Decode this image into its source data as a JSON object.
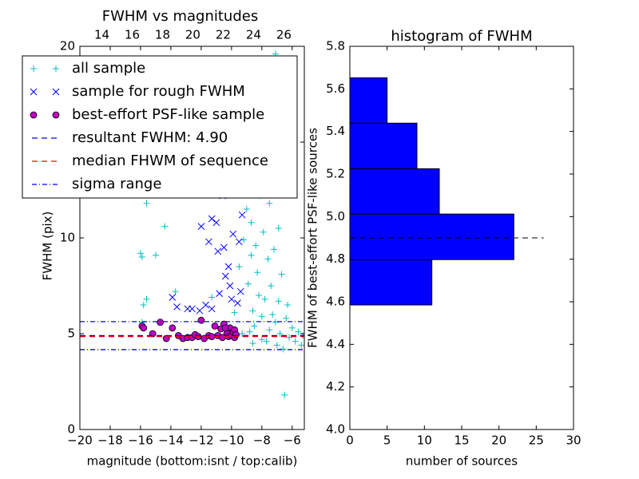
{
  "chart_data": [
    {
      "type": "scatter",
      "title": "FWHM vs magnitudes",
      "xlabel": "magnitude (bottom:isnt / top:calib)",
      "ylabel": "FWHM (pix)",
      "xlim": [
        -20,
        -5.2
      ],
      "xticks": [
        {
          "value": -20,
          "label": "−20"
        },
        {
          "value": -18,
          "label": "−18"
        },
        {
          "value": -16,
          "label": "−16"
        },
        {
          "value": -14,
          "label": "−14"
        },
        {
          "value": -12,
          "label": "−12"
        },
        {
          "value": -10,
          "label": "−10"
        },
        {
          "value": -8,
          "label": "−8"
        },
        {
          "value": -6,
          "label": "−6"
        }
      ],
      "ylim": [
        0,
        20
      ],
      "yticks": [
        0,
        5,
        10,
        15,
        20
      ],
      "x2lim": [
        12.55,
        27.35
      ],
      "x2ticks": [
        14,
        16,
        18,
        20,
        22,
        24,
        26
      ],
      "series": [
        {
          "name": "all sample",
          "kind": "scatter",
          "marker": "plus",
          "color": "#00bfbf",
          "x": [
            -16.0,
            -15.9,
            -15.6,
            -15.0,
            -14.5,
            -14.4,
            -15.8,
            -15.6,
            -15.9,
            -14.0,
            -13.7,
            -12.0,
            -11.3,
            -10.5,
            -9.8,
            -9.5,
            -9.2,
            -9.0,
            -8.9,
            -8.7,
            -8.6,
            -8.5,
            -8.4,
            -8.3,
            -8.2,
            -8.1,
            -8.0,
            -7.9,
            -7.8,
            -7.7,
            -7.6,
            -7.5,
            -7.4,
            -7.3,
            -7.2,
            -7.1,
            -7.0,
            -6.9,
            -6.8,
            -6.7,
            -6.6,
            -6.5,
            -6.4,
            -6.3,
            -6.2,
            -6.0,
            -5.8,
            -5.6,
            -5.4,
            -5.3,
            -7.1,
            -8.6,
            -8.0,
            -9.3,
            -8.8,
            -7.9,
            -8.3,
            -7.5,
            -6.9,
            -8.7
          ],
          "values": [
            9.2,
            9.0,
            11.8,
            9.1,
            12.3,
            10.6,
            6.5,
            6.8,
            5.6,
            12.8,
            7.2,
            12.8,
            6.9,
            5.5,
            6.1,
            8.5,
            9.9,
            11.5,
            7.6,
            10.8,
            6.2,
            5.4,
            9.6,
            8.2,
            7.0,
            12.2,
            5.9,
            10.3,
            6.8,
            4.6,
            8.9,
            5.2,
            7.5,
            6.0,
            9.4,
            5.6,
            4.4,
            6.7,
            5.0,
            8.1,
            4.2,
            1.8,
            5.8,
            6.5,
            4.8,
            5.3,
            4.6,
            5.1,
            4.4,
            4.9,
            19.6,
            4.5,
            4.7,
            5.0,
            5.1,
            13.5,
            12.6,
            11.8,
            10.5,
            9.1
          ]
        },
        {
          "name": "sample for rough FWHM",
          "kind": "scatter",
          "marker": "x",
          "color": "#0000ff",
          "x": [
            -13.9,
            -13.6,
            -12.9,
            -12.6,
            -12.1,
            -11.7,
            -11.3,
            -12.0,
            -11.0,
            -11.3,
            -12.4,
            -10.6,
            -10.9,
            -10.5,
            -10.2,
            -10.4,
            -9.9,
            -9.8,
            -9.5,
            -9.3,
            -10.1,
            -9.6,
            -9.4,
            -10.0,
            -10.8,
            -11.5
          ],
          "values": [
            6.9,
            6.4,
            6.3,
            6.3,
            6.2,
            6.5,
            6.3,
            10.6,
            10.8,
            11.0,
            12.3,
            12.2,
            9.3,
            9.5,
            8.5,
            8.0,
            10.2,
            12.8,
            9.8,
            11.2,
            7.5,
            6.6,
            7.2,
            6.8,
            7.1,
            9.8
          ]
        },
        {
          "name": "best-effort PSF-like sample",
          "kind": "scatter",
          "marker": "circle",
          "color": "#bf00bf",
          "x": [
            -15.9,
            -15.8,
            -15.2,
            -14.7,
            -14.3,
            -13.9,
            -13.5,
            -13.2,
            -12.9,
            -12.6,
            -12.4,
            -12.2,
            -12.0,
            -11.8,
            -11.5,
            -11.3,
            -11.1,
            -10.9,
            -10.7,
            -10.6,
            -10.5,
            -10.3,
            -10.2,
            -10.1,
            -10.0,
            -9.9,
            -9.8,
            -9.8,
            -9.7,
            -10.4
          ],
          "values": [
            5.4,
            5.3,
            5.0,
            5.6,
            4.75,
            5.3,
            4.9,
            4.75,
            4.8,
            4.8,
            4.95,
            4.85,
            5.7,
            4.75,
            4.9,
            4.85,
            5.4,
            4.9,
            5.25,
            4.8,
            5.5,
            5.0,
            4.85,
            5.3,
            4.9,
            5.1,
            4.8,
            5.2,
            4.95,
            5.3
          ]
        },
        {
          "name": "resultant FWHM: 4.90",
          "kind": "hline",
          "linestyle": "dashed",
          "color": "#0000ff",
          "values": [
            4.9
          ]
        },
        {
          "name": "median FHWM of sequence",
          "kind": "hline",
          "linestyle": "dashed",
          "color": "#ff0000",
          "values": [
            4.85
          ]
        },
        {
          "name": "sigma range",
          "kind": "hline",
          "linestyle": "dashdot",
          "color": "#0000ff",
          "values": [
            5.63,
            4.17
          ]
        }
      ]
    },
    {
      "type": "histogram",
      "orientation": "horizontal",
      "title": "histogram of FWHM",
      "xlabel": "number of sources",
      "ylabel": "FWHM of best-effort PSF-like sources",
      "xlim": [
        0,
        30
      ],
      "xticks": [
        0,
        5,
        10,
        15,
        20,
        25,
        30
      ],
      "ylim": [
        4.0,
        5.8
      ],
      "yticks": [
        {
          "value": 4.0,
          "label": "4.0"
        },
        4.2,
        4.4,
        4.6,
        4.8,
        {
          "value": 5.0,
          "label": "5.0"
        },
        5.2,
        5.4,
        5.6,
        5.8
      ],
      "bins": [
        4.585,
        4.798,
        5.012,
        5.225,
        5.439,
        5.652
      ],
      "values": [
        11,
        22,
        12,
        9,
        5
      ],
      "color": "#0000ff",
      "hline": {
        "value": 4.9,
        "x": [
          0,
          26
        ],
        "linestyle": "dashed",
        "color": "#000000"
      }
    }
  ]
}
